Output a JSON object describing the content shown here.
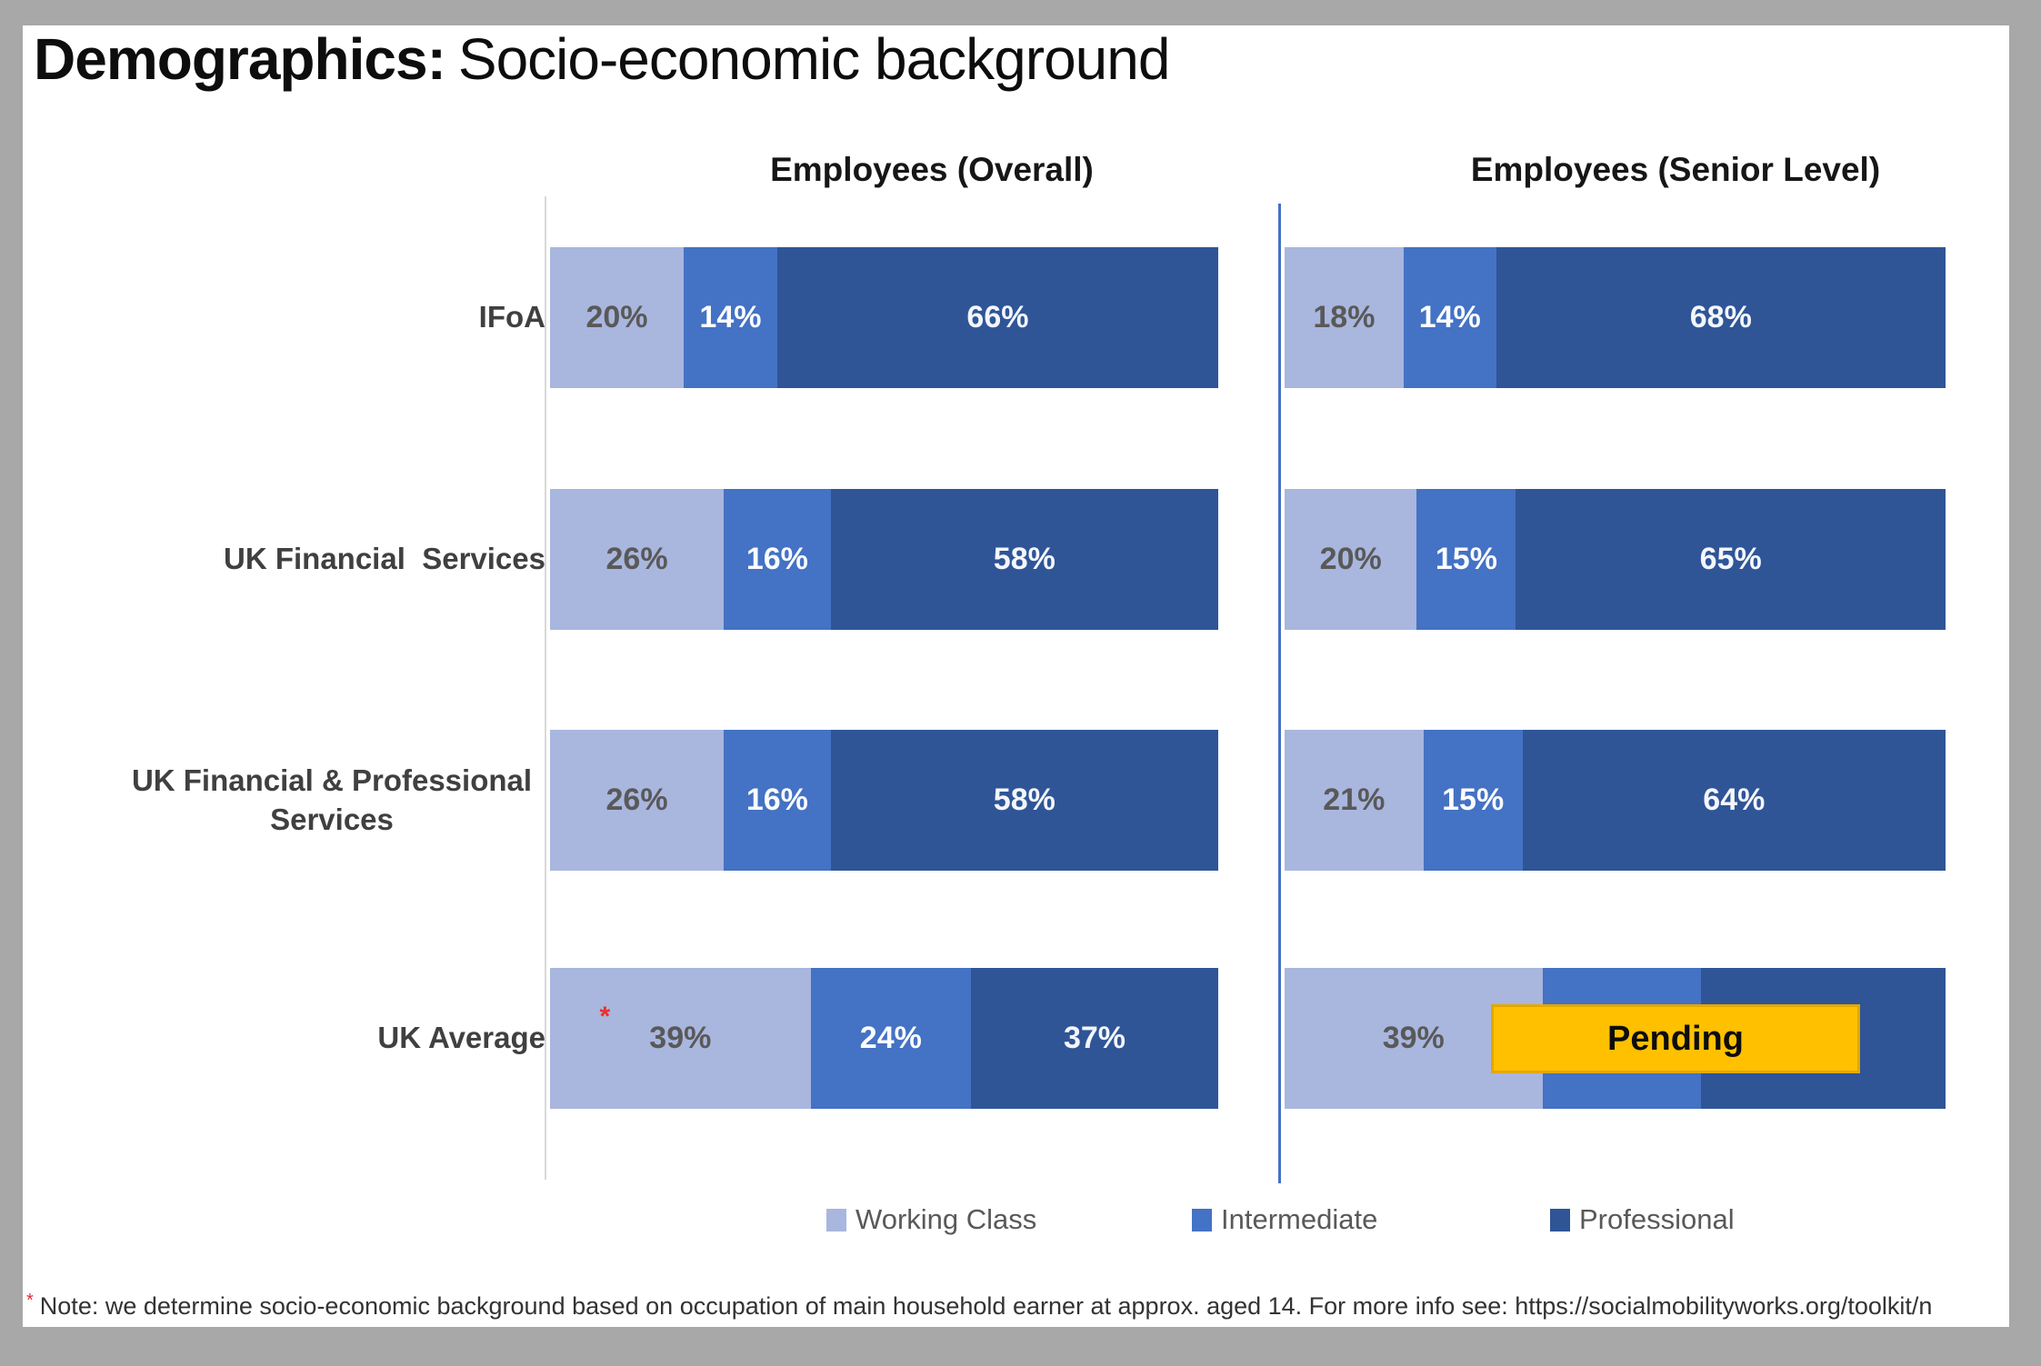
{
  "title": {
    "lead": "Demographics:",
    "rest": "Socio-economic background"
  },
  "chart_data": {
    "type": "bar",
    "variant": "horizontal-stacked-100pct",
    "unit": "%",
    "categories": [
      "IFoA",
      "UK Financial  Services",
      "UK Financial & Professional Services",
      "UK Average"
    ],
    "series_names": [
      "Working Class",
      "Intermediate",
      "Professional"
    ],
    "xlim": [
      0,
      100
    ],
    "grid": false,
    "panels": [
      {
        "title": "Employees (Overall)",
        "rows": [
          {
            "category": "IFoA",
            "values": [
              20,
              14,
              66
            ],
            "labels": [
              "20%",
              "14%",
              "66%"
            ]
          },
          {
            "category": "UK Financial  Services",
            "values": [
              26,
              16,
              58
            ],
            "labels": [
              "26%",
              "16%",
              "58%"
            ]
          },
          {
            "category": "UK Financial & Professional Services",
            "values": [
              26,
              16,
              58
            ],
            "labels": [
              "26%",
              "16%",
              "58%"
            ]
          },
          {
            "category": "UK Average",
            "values": [
              39,
              24,
              37
            ],
            "labels": [
              "39%",
              "24%",
              "37%"
            ],
            "annotation": "*"
          }
        ]
      },
      {
        "title": "Employees (Senior Level)",
        "rows": [
          {
            "category": "IFoA",
            "values": [
              18,
              14,
              68
            ],
            "labels": [
              "18%",
              "14%",
              "68%"
            ]
          },
          {
            "category": "UK Financial  Services",
            "values": [
              20,
              15,
              65
            ],
            "labels": [
              "20%",
              "15%",
              "65%"
            ]
          },
          {
            "category": "UK Financial & Professional Services",
            "values": [
              21,
              15,
              64
            ],
            "labels": [
              "21%",
              "15%",
              "64%"
            ]
          },
          {
            "category": "UK Average",
            "values": [
              39,
              24,
              37
            ],
            "labels": [
              "39%",
              "",
              ""
            ],
            "overlay": "Pending"
          }
        ]
      }
    ],
    "legend": {
      "position": "bottom",
      "items": [
        "Working Class",
        "Intermediate",
        "Professional"
      ]
    }
  },
  "colors": {
    "working_class": "#a9b6de",
    "intermediate": "#4472c4",
    "professional": "#2f5597",
    "pending_bg": "#ffc000",
    "annotation_red": "#e8302a",
    "axis_overall": "#d9d9d9",
    "axis_senior": "#4472c4",
    "frame": "#a8a8a8"
  },
  "footnote": {
    "marker": "*",
    "text": "Note: we determine socio-economic background based on occupation of main household earner at approx. aged 14. For more info see: https://socialmobilityworks.org/toolkit/n"
  }
}
